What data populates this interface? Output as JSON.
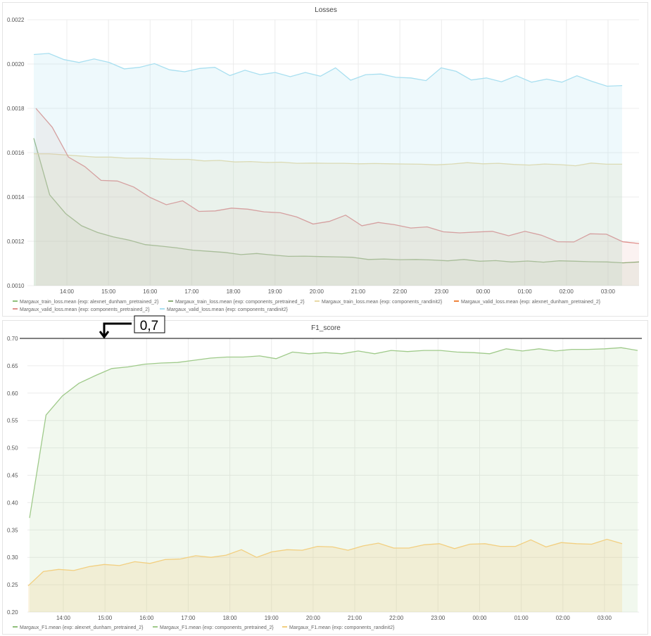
{
  "chart_data": [
    {
      "type": "area",
      "title": "Losses",
      "ylim": [
        0.001,
        0.0022
      ],
      "y_ticks": [
        "0.0010",
        "0.0012",
        "0.0014",
        "0.0016",
        "0.0018",
        "0.0020",
        "0.0022"
      ],
      "y_tick_values": [
        0.001,
        0.0012,
        0.0014,
        0.0016,
        0.0018,
        0.002,
        0.0022
      ],
      "x_ticks": [
        "14:00",
        "15:00",
        "16:00",
        "17:00",
        "18:00",
        "19:00",
        "20:00",
        "21:00",
        "22:00",
        "23:00",
        "00:00",
        "01:00",
        "02:00",
        "03:00"
      ],
      "grid": true,
      "legend_position": "bottom",
      "series": [
        {
          "name": "Margaux_train_loss.mean {exp: alexnet_dunham_pretrained_2}",
          "color": "#8fbf7a",
          "fill_opacity": 0.0,
          "values": []
        },
        {
          "name": "Margaux_train_loss.mean {exp: components_pretrained_2}",
          "color": "#8db07a",
          "fill_opacity": 0.12,
          "values": [
            0.001665,
            0.00141,
            0.001325,
            0.00127,
            0.00124,
            0.00122,
            0.001205,
            0.001185,
            0.001178,
            0.00117,
            0.00116,
            0.001155,
            0.00115,
            0.00114,
            0.001145,
            0.001138,
            0.001132,
            0.001133,
            0.001131,
            0.00113,
            0.001128,
            0.001118,
            0.00112,
            0.001117,
            0.001118,
            0.001116,
            0.001112,
            0.001118,
            0.00111,
            0.001113,
            0.001107,
            0.001111,
            0.001106,
            0.001112,
            0.00111,
            0.001108,
            0.001107,
            0.001103,
            0.001107
          ]
        },
        {
          "name": "Margaux_train_loss.mean {exp: components_randinit2}",
          "color": "#e8d9a6",
          "fill_opacity": 0.22,
          "values": [
            0.001595,
            0.001595,
            0.00159,
            0.001585,
            0.00158,
            0.00158,
            0.001575,
            0.001575,
            0.001572,
            0.00157,
            0.00157,
            0.001563,
            0.001565,
            0.001558,
            0.00156,
            0.001556,
            0.001557,
            0.001552,
            0.001553,
            0.001552,
            0.001552,
            0.00155,
            0.001551,
            0.00155,
            0.001549,
            0.001548,
            0.001545,
            0.001549,
            0.001555,
            0.00155,
            0.001552,
            0.001547,
            0.001544,
            0.001549,
            0.001546,
            0.001541,
            0.001553,
            0.001548,
            0.001548
          ]
        },
        {
          "name": "Margaux_valid_loss.mean {exp: alexnet_dunham_pretrained_2}",
          "color": "#ef843c",
          "fill_opacity": 0.0,
          "values": []
        },
        {
          "name": "Margaux_valid_loss.mean {exp: components_pretrained_2}",
          "color": "#e0908c",
          "fill_opacity": 0.12,
          "values": [
            0.0018,
            0.001715,
            0.00158,
            0.001537,
            0.001475,
            0.001472,
            0.001445,
            0.001398,
            0.001365,
            0.001383,
            0.001335,
            0.001337,
            0.00135,
            0.001345,
            0.001333,
            0.001329,
            0.00131,
            0.001278,
            0.00129,
            0.001318,
            0.00127,
            0.001285,
            0.001275,
            0.00126,
            0.001265,
            0.001243,
            0.001238,
            0.001242,
            0.001245,
            0.001225,
            0.001245,
            0.001228,
            0.001198,
            0.001197,
            0.001234,
            0.001232,
            0.001198,
            0.00119
          ]
        },
        {
          "name": "Margaux_valid_loss.mean {exp: components_randinit2}",
          "color": "#a8dff0",
          "fill_opacity": 0.2,
          "values": [
            0.002043,
            0.002048,
            0.00202,
            0.002007,
            0.002023,
            0.002007,
            0.001978,
            0.001985,
            0.002002,
            0.001974,
            0.001965,
            0.00198,
            0.001985,
            0.001948,
            0.001972,
            0.001952,
            0.001962,
            0.001943,
            0.001962,
            0.001945,
            0.001983,
            0.001927,
            0.001952,
            0.001955,
            0.00194,
            0.001937,
            0.001925,
            0.001983,
            0.001967,
            0.001928,
            0.001937,
            0.00192,
            0.001947,
            0.001918,
            0.001932,
            0.001918,
            0.001947,
            0.001922,
            0.0019,
            0.001903
          ]
        }
      ]
    },
    {
      "type": "area",
      "title": "F1_score",
      "ylim": [
        0.2,
        0.7
      ],
      "y_ticks": [
        "0.20",
        "0.25",
        "0.30",
        "0.35",
        "0.40",
        "0.45",
        "0.50",
        "0.55",
        "0.60",
        "0.65",
        "0.70"
      ],
      "y_tick_values": [
        0.2,
        0.25,
        0.3,
        0.35,
        0.4,
        0.45,
        0.5,
        0.55,
        0.6,
        0.65,
        0.7
      ],
      "x_ticks": [
        "14:00",
        "15:00",
        "16:00",
        "17:00",
        "18:00",
        "19:00",
        "20:00",
        "21:00",
        "22:00",
        "23:00",
        "00:00",
        "01:00",
        "02:00",
        "03:00"
      ],
      "grid": true,
      "legend_position": "bottom",
      "series": [
        {
          "name": "Margaux_F1.mean {exp: alexnet_dunham_pretrained_2}",
          "color": "#8fbf7a",
          "fill_opacity": 0.0,
          "values": []
        },
        {
          "name": "Margaux_F1.mean {exp: components_pretrained_2}",
          "color": "#9fca8a",
          "fill_opacity": 0.14,
          "values": [
            0.372,
            0.56,
            0.595,
            0.618,
            0.632,
            0.645,
            0.648,
            0.653,
            0.655,
            0.656,
            0.66,
            0.664,
            0.666,
            0.666,
            0.668,
            0.663,
            0.675,
            0.672,
            0.674,
            0.672,
            0.677,
            0.672,
            0.678,
            0.676,
            0.678,
            0.678,
            0.675,
            0.674,
            0.672,
            0.681,
            0.677,
            0.681,
            0.677,
            0.68,
            0.68,
            0.681,
            0.683,
            0.678
          ]
        },
        {
          "name": "Margaux_F1.mean {exp: components_randinit2}",
          "color": "#f2cf80",
          "fill_opacity": 0.22,
          "values": [
            0.248,
            0.274,
            0.278,
            0.276,
            0.283,
            0.287,
            0.285,
            0.292,
            0.289,
            0.296,
            0.297,
            0.303,
            0.3,
            0.304,
            0.314,
            0.3,
            0.31,
            0.314,
            0.313,
            0.32,
            0.319,
            0.313,
            0.321,
            0.326,
            0.317,
            0.317,
            0.323,
            0.325,
            0.316,
            0.324,
            0.325,
            0.32,
            0.32,
            0.332,
            0.319,
            0.327,
            0.325,
            0.324,
            0.333,
            0.325
          ]
        }
      ]
    }
  ],
  "annotation": {
    "label": "0,7",
    "value": 0.7
  }
}
